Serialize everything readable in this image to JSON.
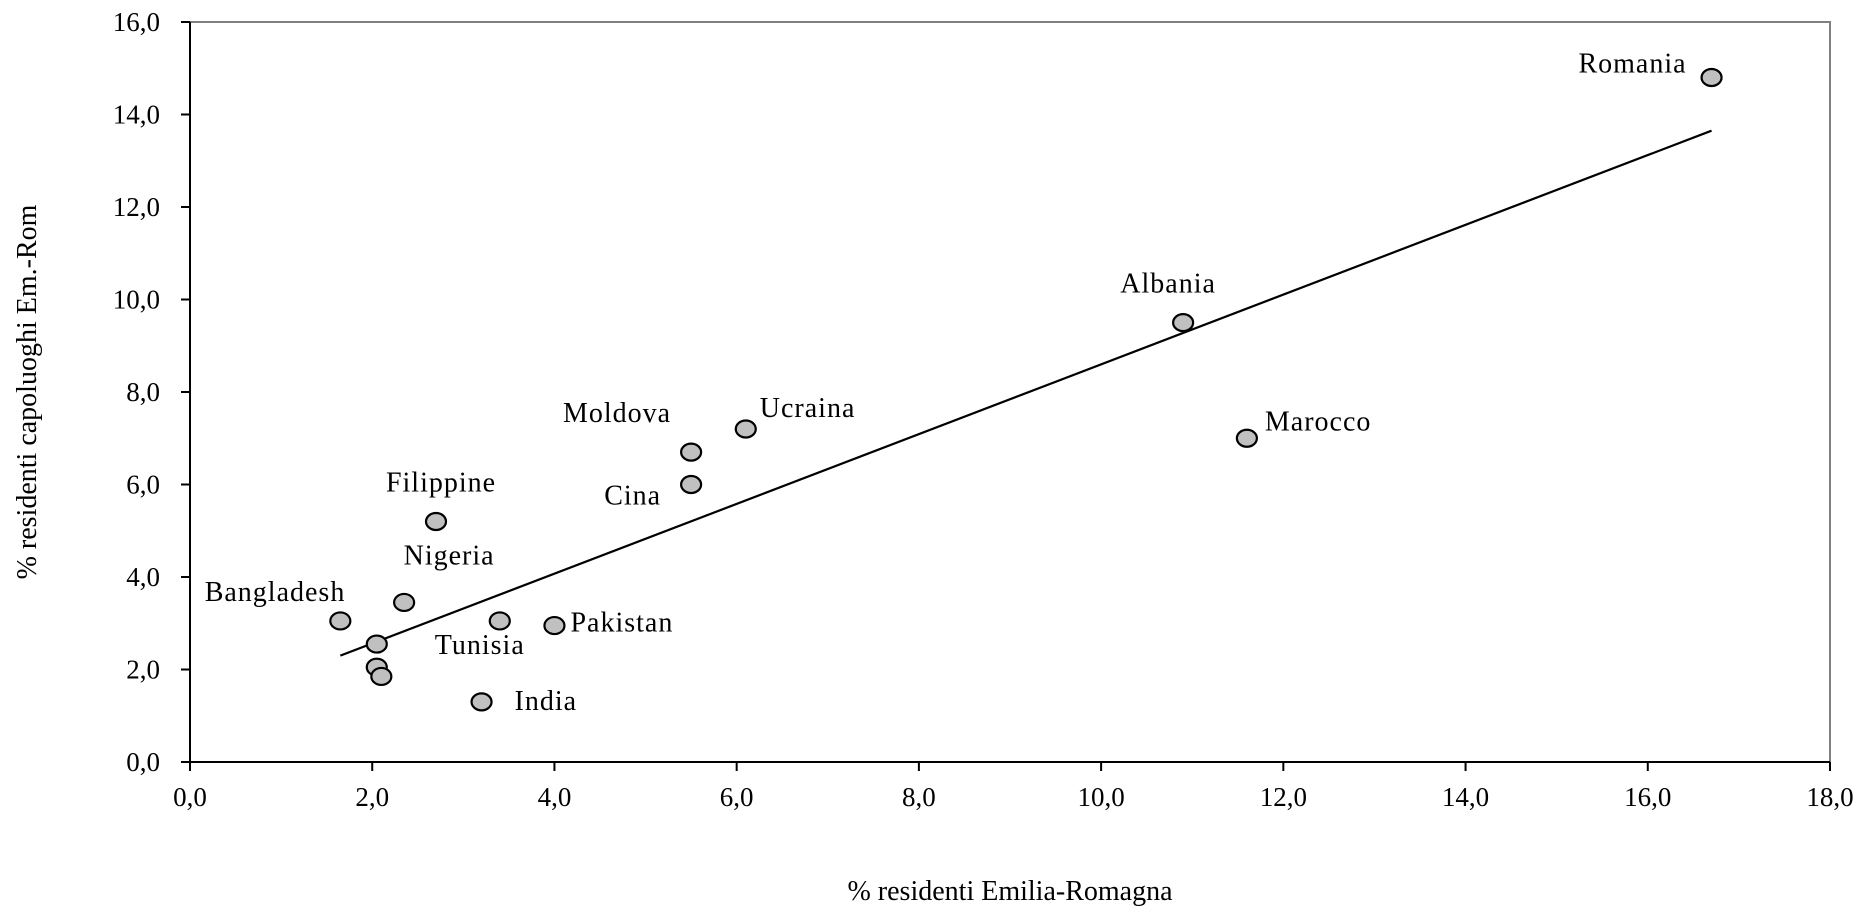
{
  "chart_data": {
    "type": "scatter",
    "xlabel": "% residenti Emilia-Romagna",
    "ylabel": "% residenti capoluoghi Em.-Rom",
    "xlim": [
      0,
      18
    ],
    "ylim": [
      0,
      16
    ],
    "xticks": [
      "0,0",
      "2,0",
      "4,0",
      "6,0",
      "8,0",
      "10,0",
      "12,0",
      "14,0",
      "16,0",
      "18,0"
    ],
    "yticks": [
      "0,0",
      "2,0",
      "4,0",
      "6,0",
      "8,0",
      "10,0",
      "12,0",
      "14,0",
      "16,0"
    ],
    "xtick_values": [
      0,
      2,
      4,
      6,
      8,
      10,
      12,
      14,
      16,
      18
    ],
    "ytick_values": [
      0,
      2,
      4,
      6,
      8,
      10,
      12,
      14,
      16
    ],
    "points": [
      {
        "label": "Romania",
        "x": 16.7,
        "y": 14.8
      },
      {
        "label": "Albania",
        "x": 10.9,
        "y": 9.5
      },
      {
        "label": "Marocco",
        "x": 11.6,
        "y": 7.0
      },
      {
        "label": "Ucraina",
        "x": 6.1,
        "y": 7.2
      },
      {
        "label": "Moldova",
        "x": 5.5,
        "y": 6.7
      },
      {
        "label": "Cina",
        "x": 5.5,
        "y": 6.0
      },
      {
        "label": "Filippine",
        "x": 2.7,
        "y": 5.2
      },
      {
        "label": "Nigeria",
        "x": 2.35,
        "y": 3.45
      },
      {
        "label": "Bangladesh",
        "x": 1.65,
        "y": 3.05
      },
      {
        "label": "Tunisia",
        "x": 3.4,
        "y": 3.05
      },
      {
        "label": "Pakistan",
        "x": 4.0,
        "y": 2.95
      },
      {
        "label": "",
        "x": 2.05,
        "y": 2.55
      },
      {
        "label": "",
        "x": 2.05,
        "y": 2.05
      },
      {
        "label": "",
        "x": 2.1,
        "y": 1.85
      },
      {
        "label": "India",
        "x": 3.2,
        "y": 1.3
      }
    ],
    "trendline": {
      "x": [
        1.65,
        16.7
      ],
      "y": [
        2.3,
        13.65
      ]
    },
    "grid": false,
    "legend": "none",
    "colors": {
      "marker_fill": "#c0c0c0",
      "marker_stroke": "#000000",
      "line": "#000000",
      "frame": "#808080"
    }
  }
}
